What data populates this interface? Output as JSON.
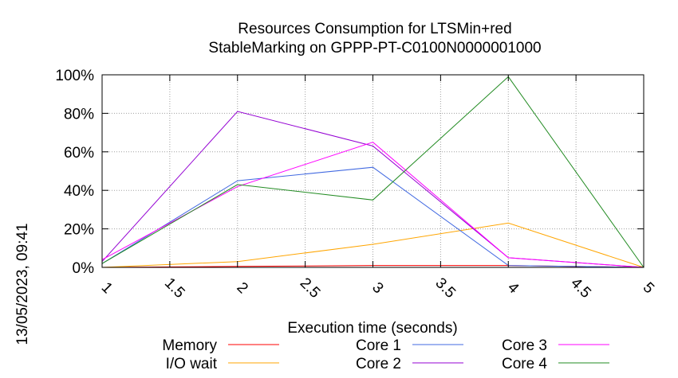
{
  "chart_data": {
    "type": "line",
    "title": [
      "Resources Consumption for LTSMin+red",
      "StableMarking on GPPP-PT-C0100N0000001000"
    ],
    "xlabel": "Execution time (seconds)",
    "ylabel": "",
    "xlim": [
      1,
      5
    ],
    "ylim": [
      0,
      100
    ],
    "x_ticks": [
      "1",
      "1.5",
      "2",
      "2.5",
      "3",
      "3.5",
      "4",
      "4.5",
      "5"
    ],
    "y_ticks": [
      "0%",
      "20%",
      "40%",
      "60%",
      "80%",
      "100%"
    ],
    "grid": true,
    "legend_position": "bottom",
    "timestamp": "13/05/2023, 09:41",
    "series": [
      {
        "name": "Memory",
        "color": "#ff0000",
        "x": [
          1,
          2,
          3,
          4,
          5
        ],
        "y": [
          0,
          0.5,
          1,
          1,
          0
        ]
      },
      {
        "name": "I/O wait",
        "color": "#ffa500",
        "x": [
          1,
          2,
          3,
          4,
          5
        ],
        "y": [
          0,
          3,
          12,
          23,
          0
        ]
      },
      {
        "name": "Core 1",
        "color": "#4169e1",
        "x": [
          1,
          2,
          3,
          4,
          5
        ],
        "y": [
          2,
          45,
          52,
          1,
          0
        ]
      },
      {
        "name": "Core 2",
        "color": "#9400d3",
        "x": [
          1,
          2,
          3,
          4,
          5
        ],
        "y": [
          3,
          81,
          63,
          5,
          0
        ]
      },
      {
        "name": "Core 3",
        "color": "#ff00ff",
        "x": [
          1,
          2,
          3,
          4,
          5
        ],
        "y": [
          4,
          42,
          65,
          5,
          0
        ]
      },
      {
        "name": "Core 4",
        "color": "#228b22",
        "x": [
          1,
          2,
          3,
          4,
          5
        ],
        "y": [
          2,
          43,
          35,
          99,
          0
        ]
      }
    ]
  }
}
